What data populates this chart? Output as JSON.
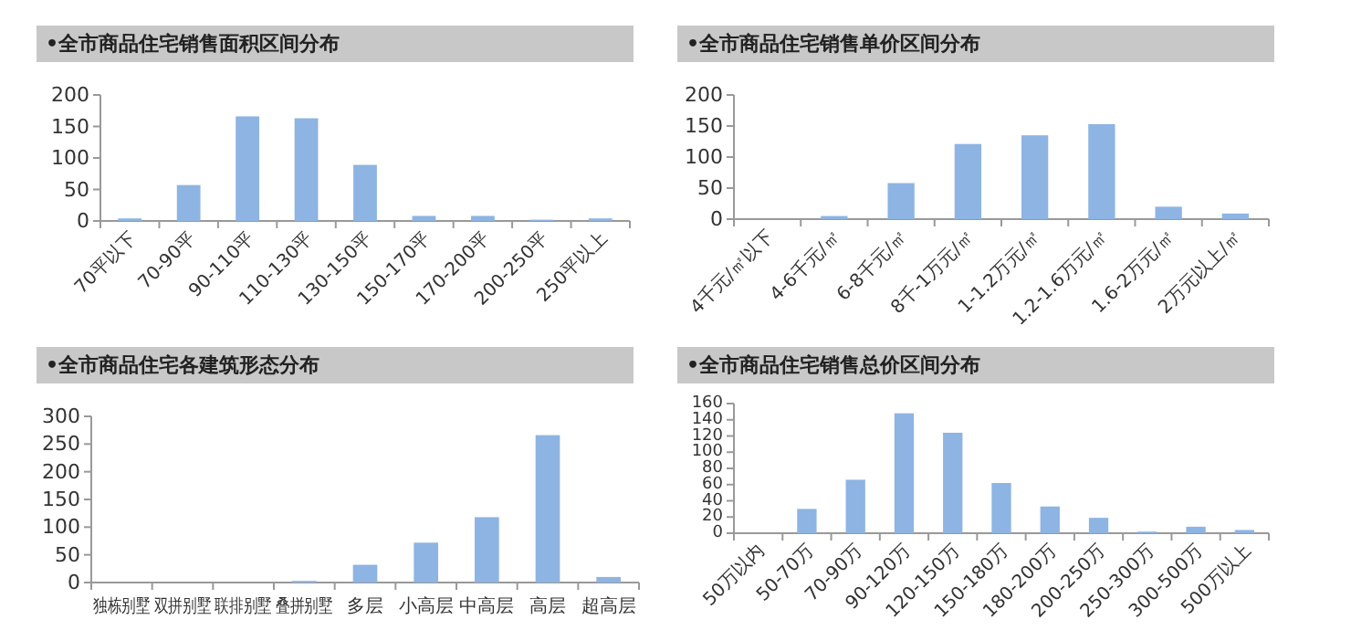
{
  "chart_data": [
    {
      "type": "bar",
      "title": "•全市商品住宅销售面积区间分布",
      "categories": [
        "70平以下",
        "70-90平",
        "90-110平",
        "110-130平",
        "130-150平",
        "150-170平",
        "170-200平",
        "200-250平",
        "250平以上"
      ],
      "values": [
        4,
        57,
        166,
        163,
        89,
        8,
        8,
        2,
        4
      ],
      "color": "#8db4e2",
      "ylim": [
        0,
        200
      ],
      "yticks": [
        0,
        50,
        100,
        150,
        200
      ]
    },
    {
      "type": "bar",
      "title": "•全市商品住宅销售单价区间分布",
      "categories": [
        "4千元/㎡以下",
        "4-6千元/㎡",
        "6-8千元/㎡",
        "8千-1万元/㎡",
        "1-1.2万元/㎡",
        "1.2-1.6万元/㎡",
        "1.6-2万元/㎡",
        "2万元以上/㎡"
      ],
      "values": [
        0,
        5,
        58,
        121,
        135,
        153,
        20,
        9
      ],
      "color": "#8db4e2",
      "ylim": [
        0,
        200
      ],
      "yticks": [
        0,
        50,
        100,
        150,
        200
      ]
    },
    {
      "type": "bar",
      "title": "•全市商品住宅各建筑形态分布",
      "categories": [
        "独栋别墅",
        "双拼别墅",
        "联排别墅",
        "叠拼别墅",
        "多层",
        "小高层",
        "中高层",
        "高层",
        "超高层"
      ],
      "values": [
        0,
        0,
        0,
        3,
        32,
        72,
        118,
        266,
        10
      ],
      "color": "#8db4e2",
      "ylim": [
        0,
        300
      ],
      "yticks": [
        0,
        50,
        100,
        150,
        200,
        250,
        300
      ]
    },
    {
      "type": "bar",
      "title": "•全市商品住宅销售总价区间分布",
      "categories": [
        "50万以内",
        "50-70万",
        "70-90万",
        "90-120万",
        "120-150万",
        "150-180万",
        "180-200万",
        "200-250万",
        "250-300万",
        "300-500万",
        "500万以上"
      ],
      "values": [
        0,
        30,
        66,
        148,
        124,
        62,
        33,
        19,
        2,
        8,
        4
      ],
      "color": "#8db4e2",
      "ylim": [
        0,
        160
      ],
      "yticks": [
        0,
        20,
        40,
        60,
        80,
        100,
        120,
        140,
        160
      ]
    }
  ]
}
